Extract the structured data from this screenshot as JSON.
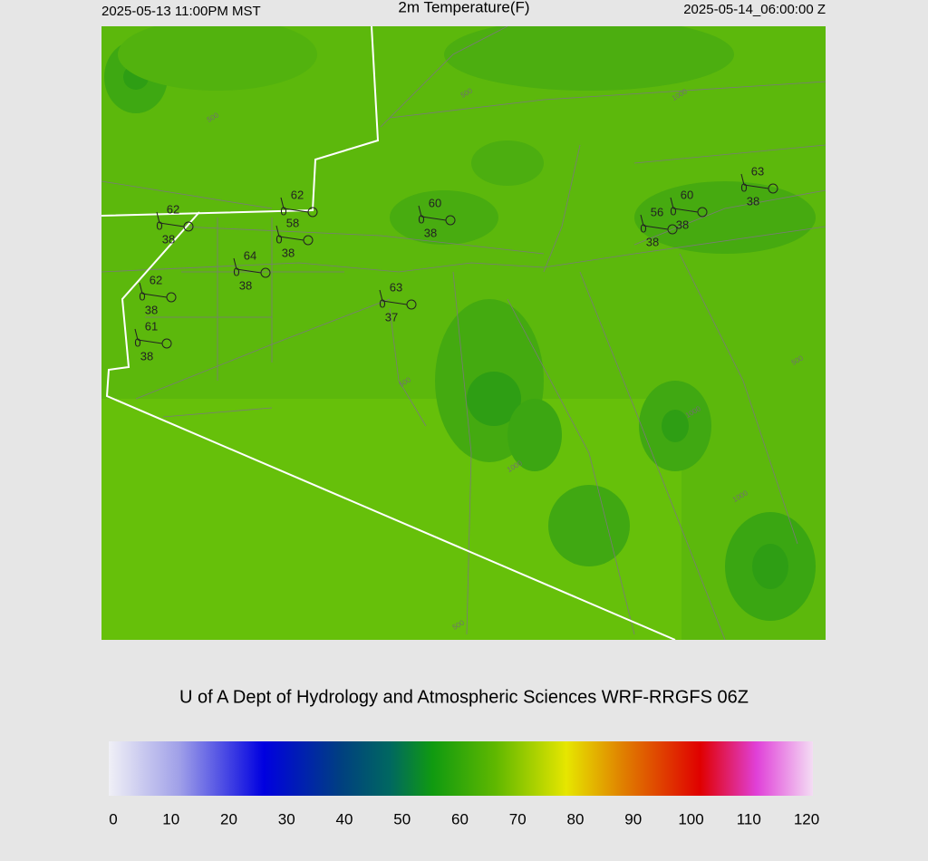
{
  "header": {
    "local_time": "2025-05-13 11:00PM MST",
    "title": "2m Temperature(F)",
    "valid_time": "2025-05-14_06:00:00 Z"
  },
  "map": {
    "contour_labels": [
      "500",
      "1000",
      "500",
      "1000",
      "500",
      "1000",
      "1000",
      "500",
      "500"
    ],
    "stations": [
      {
        "temperature": 62,
        "wind": 0,
        "dewpoint": 38
      },
      {
        "temperature": 62,
        "wind": 0
      },
      {
        "temperature": 58,
        "wind": 0,
        "dewpoint": 38
      },
      {
        "temperature": 64,
        "wind": 0,
        "dewpoint": 38
      },
      {
        "temperature": 62,
        "wind": 0,
        "dewpoint": 38
      },
      {
        "temperature": 61,
        "wind": 0,
        "dewpoint": 38
      },
      {
        "temperature": 63,
        "wind": 0,
        "dewpoint": 37
      },
      {
        "temperature": 60,
        "wind": 0,
        "dewpoint": 38
      },
      {
        "temperature": 56,
        "wind": 0,
        "dewpoint": 38
      },
      {
        "temperature": 60,
        "wind": 0,
        "dewpoint": 38
      },
      {
        "temperature": 63,
        "wind": 0,
        "dewpoint": 38
      }
    ]
  },
  "credit": "U of A Dept of Hydrology and Atmospheric Sciences WRF-RRGFS 06Z",
  "colorbar": {
    "range": [
      0,
      120
    ],
    "ticks": [
      0,
      10,
      20,
      30,
      40,
      50,
      60,
      70,
      80,
      90,
      100,
      110,
      120
    ]
  }
}
